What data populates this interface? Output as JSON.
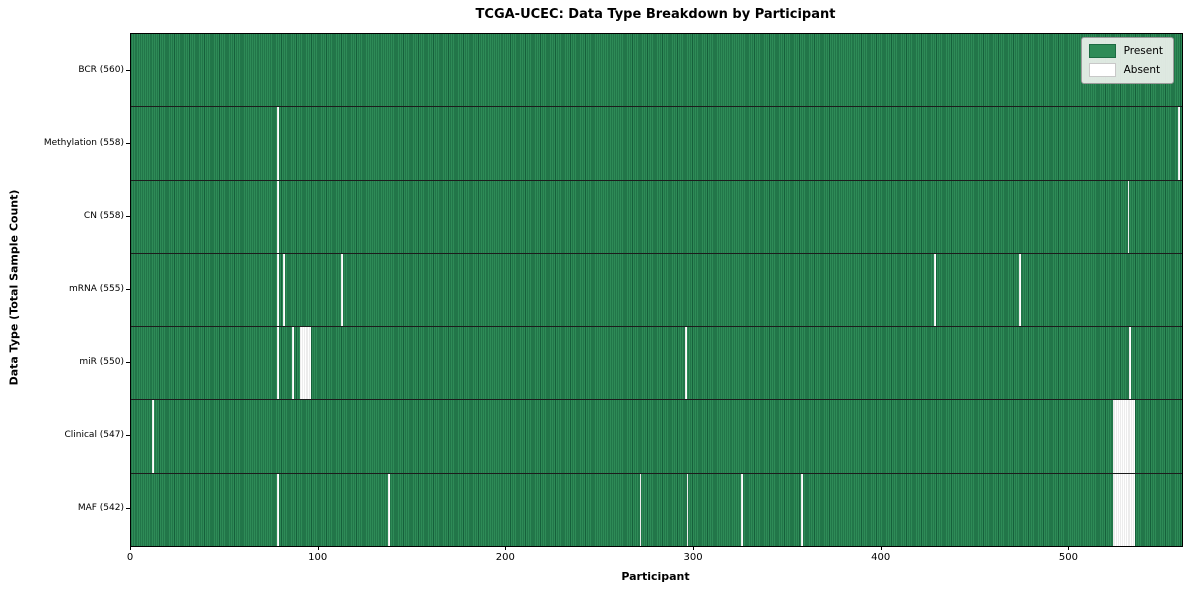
{
  "title": "TCGA-UCEC: Data Type Breakdown by Participant",
  "axes": {
    "x_label": "Participant",
    "y_label": "Data Type (Total Sample Count)"
  },
  "legend": {
    "items": [
      {
        "label": "Present",
        "color": "#2e8b57",
        "border": "#1c6b42"
      },
      {
        "label": "Absent",
        "color": "#ffffff",
        "border": "#c8c8c8"
      }
    ]
  },
  "chart_data": {
    "type": "heatmap",
    "title": "TCGA-UCEC: Data Type Breakdown by Participant",
    "xlabel": "Participant",
    "ylabel": "Data Type (Total Sample Count)",
    "x_ticks": [
      0,
      100,
      200,
      300,
      400,
      500
    ],
    "x_range": [
      0,
      560
    ],
    "n_participants": 560,
    "cell_states": [
      "Present",
      "Absent"
    ],
    "colors": {
      "present": "#2e8b57",
      "present_edge": "#16603b",
      "absent": "#ffffff"
    },
    "legend_position": "upper right",
    "rows": [
      {
        "label": "BCR (560)",
        "data_type": "BCR",
        "present_count": 560,
        "absent_participants": []
      },
      {
        "label": "Methylation (558)",
        "data_type": "Methylation",
        "present_count": 558,
        "absent_participants": [
          78,
          558
        ]
      },
      {
        "label": "CN (558)",
        "data_type": "CN",
        "present_count": 558,
        "absent_participants": [
          78,
          531
        ]
      },
      {
        "label": "mRNA (555)",
        "data_type": "mRNA",
        "present_count": 555,
        "absent_participants": [
          78,
          81,
          112,
          428,
          473
        ]
      },
      {
        "label": "miR (550)",
        "data_type": "miR",
        "present_count": 550,
        "absent_participants": [
          78,
          86,
          90,
          91,
          92,
          93,
          94,
          95,
          295,
          532
        ]
      },
      {
        "label": "Clinical (547)",
        "data_type": "Clinical",
        "present_count": 547,
        "absent_participants": [
          11,
          523,
          524,
          525,
          526,
          527,
          528,
          529,
          530,
          531,
          532,
          533,
          534
        ]
      },
      {
        "label": "MAF (542)",
        "data_type": "MAF",
        "present_count": 542,
        "absent_participants": [
          78,
          137,
          271,
          296,
          325,
          357,
          523,
          524,
          525,
          526,
          527,
          528,
          529,
          530,
          531,
          532,
          533,
          534
        ]
      }
    ]
  }
}
